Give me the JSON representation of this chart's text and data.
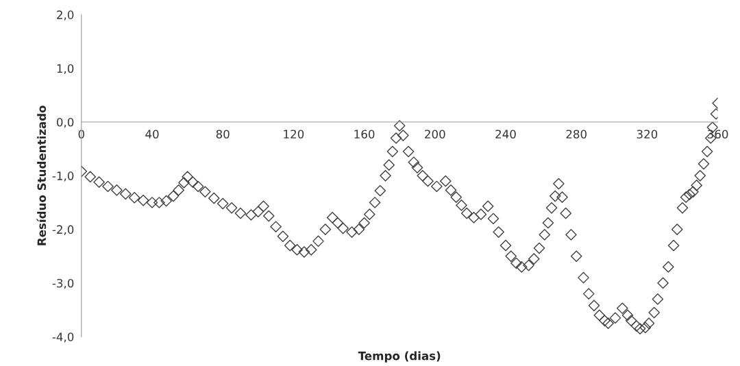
{
  "chart_data": {
    "type": "scatter",
    "xlabel": "Tempo (dias)",
    "ylabel": "Resíduo Studentizado",
    "marker": "diamond",
    "grid": false,
    "legend": false,
    "xlim": [
      0,
      360
    ],
    "xticks": [
      0,
      40,
      80,
      120,
      160,
      200,
      240,
      280,
      320,
      360
    ],
    "ylim": [
      -4,
      2
    ],
    "yticks": [
      {
        "value": -4,
        "label": "-4,0"
      },
      {
        "value": -3,
        "label": "-3,0"
      },
      {
        "value": -2,
        "label": "-2,0"
      },
      {
        "value": -1,
        "label": "-1,0"
      },
      {
        "value": 0,
        "label": "0,0"
      },
      {
        "value": 1,
        "label": "1,0"
      },
      {
        "value": 2,
        "label": "2,0"
      }
    ],
    "series": [
      {
        "color": "#404040",
        "x": [
          0,
          5,
          10,
          15,
          20,
          25,
          30,
          35,
          40,
          44,
          48,
          52,
          55,
          58,
          60,
          63,
          66,
          70,
          75,
          80,
          85,
          90,
          96,
          100,
          103,
          106,
          110,
          114,
          118,
          122,
          126,
          130,
          134,
          138,
          142,
          145,
          148,
          153,
          157,
          160,
          163,
          166,
          169,
          172,
          174,
          176,
          178,
          180,
          182,
          185,
          188,
          190,
          193,
          196,
          201,
          206,
          209,
          212,
          215,
          218,
          222,
          226,
          230,
          233,
          236,
          240,
          243,
          246,
          249,
          253,
          256,
          259,
          262,
          264,
          266,
          268,
          270,
          272,
          274,
          277,
          280,
          284,
          287,
          290,
          293,
          296,
          298,
          302,
          306,
          309,
          311,
          314,
          316,
          319,
          321,
          324,
          326,
          329,
          332,
          335,
          337,
          340,
          342,
          344,
          346,
          348,
          350,
          352,
          354,
          356,
          357,
          359,
          360
        ],
        "values": [
          -0.92,
          -1.02,
          -1.12,
          -1.2,
          -1.27,
          -1.34,
          -1.41,
          -1.46,
          -1.5,
          -1.5,
          -1.47,
          -1.38,
          -1.27,
          -1.13,
          -1.02,
          -1.12,
          -1.2,
          -1.3,
          -1.42,
          -1.52,
          -1.6,
          -1.7,
          -1.73,
          -1.67,
          -1.57,
          -1.75,
          -1.95,
          -2.13,
          -2.3,
          -2.38,
          -2.42,
          -2.38,
          -2.22,
          -2.0,
          -1.78,
          -1.88,
          -1.98,
          -2.05,
          -2.0,
          -1.88,
          -1.72,
          -1.5,
          -1.28,
          -1.0,
          -0.8,
          -0.55,
          -0.3,
          -0.07,
          -0.25,
          -0.55,
          -0.75,
          -0.85,
          -1.0,
          -1.1,
          -1.2,
          -1.1,
          -1.27,
          -1.4,
          -1.55,
          -1.7,
          -1.78,
          -1.72,
          -1.57,
          -1.8,
          -2.05,
          -2.3,
          -2.5,
          -2.63,
          -2.7,
          -2.67,
          -2.55,
          -2.35,
          -2.1,
          -1.88,
          -1.6,
          -1.38,
          -1.15,
          -1.4,
          -1.7,
          -2.1,
          -2.5,
          -2.9,
          -3.2,
          -3.42,
          -3.6,
          -3.7,
          -3.75,
          -3.65,
          -3.47,
          -3.6,
          -3.7,
          -3.8,
          -3.85,
          -3.83,
          -3.75,
          -3.55,
          -3.3,
          -3.0,
          -2.7,
          -2.3,
          -2.0,
          -1.6,
          -1.4,
          -1.35,
          -1.3,
          -1.18,
          -1.0,
          -0.78,
          -0.55,
          -0.3,
          -0.1,
          0.15,
          0.35
        ]
      }
    ]
  }
}
